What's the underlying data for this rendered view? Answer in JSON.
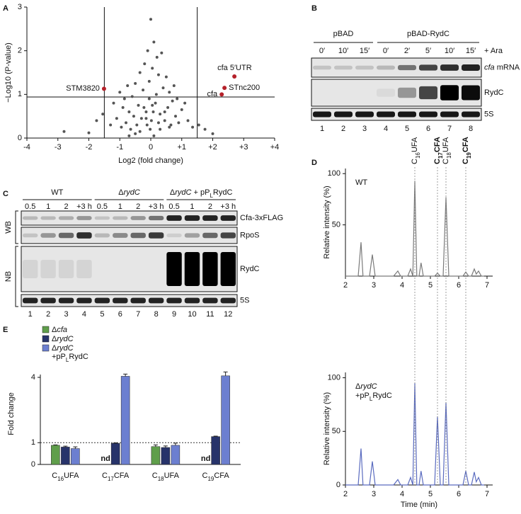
{
  "panel_labels": [
    "A",
    "B",
    "C",
    "D",
    "E"
  ],
  "chart_data": [
    {
      "type": "scatter",
      "x_label": "Log2 (fold change)",
      "y_label": "−Log10 (P-value)",
      "xlim": [
        -4,
        4
      ],
      "ylim": [
        0,
        3
      ],
      "xticks": [
        -4,
        -3,
        -2,
        -1,
        0,
        {
          "value": 1,
          "label": "+1"
        },
        {
          "value": 2,
          "label": "+2"
        },
        {
          "value": 3,
          "label": "+3"
        },
        {
          "value": 4,
          "label": "+4"
        }
      ],
      "yticks": [
        0,
        1,
        2,
        3
      ],
      "threshold_x": [
        -1.5,
        1.5
      ],
      "threshold_y": 0.94,
      "color": "#555555",
      "highlight_color": "#b5212a",
      "x": [
        -2.8,
        -2.0,
        -1.75,
        -1.55,
        -1.3,
        -1.2,
        -1.1,
        -1.0,
        -0.95,
        -0.9,
        -0.85,
        -0.8,
        -0.75,
        -0.7,
        -0.65,
        -0.6,
        -0.55,
        -0.5,
        -0.45,
        -0.4,
        -0.35,
        -0.3,
        -0.25,
        -0.2,
        -0.15,
        -0.1,
        -0.05,
        0,
        0.05,
        0.1,
        0.15,
        0.2,
        0.25,
        0.3,
        0.35,
        0.4,
        0.45,
        0.5,
        0.55,
        0.6,
        0.65,
        0.7,
        0.75,
        0.8,
        0.85,
        0.9,
        1.0,
        1.1,
        1.2,
        1.35,
        1.55,
        1.75,
        2.0,
        -0.05,
        0.02,
        -0.12,
        0.08,
        0.3,
        -0.35,
        0.18,
        -0.22,
        0.45,
        -0.5,
        0.1,
        -0.02,
        0.25,
        -0.15,
        0.6,
        -0.7,
        0.05
      ],
      "values": [
        0.15,
        0.12,
        0.4,
        0.55,
        0.3,
        0.8,
        0.45,
        1.05,
        0.25,
        0.7,
        0.9,
        0.35,
        1.2,
        0.6,
        0.2,
        0.95,
        0.5,
        1.25,
        0.3,
        0.75,
        1.5,
        0.45,
        1.1,
        1.7,
        0.6,
        2.0,
        1.3,
        2.72,
        1.6,
        2.2,
        0.8,
        1.85,
        1.45,
        0.55,
        1.95,
        1.15,
        0.4,
        1.4,
        0.7,
        1.05,
        0.3,
        0.85,
        1.2,
        0.5,
        0.9,
        0.35,
        0.65,
        0.8,
        0.4,
        0.25,
        0.3,
        0.2,
        0.1,
        0.9,
        0.4,
        0.3,
        0.6,
        0.2,
        0.15,
        1.0,
        0.7,
        0.6,
        0.1,
        0.05,
        0.2,
        0.35,
        0.45,
        0.25,
        0.05,
        0.75
      ],
      "highlights": [
        {
          "label": "STM3820",
          "x": -1.51,
          "y": 1.13
        },
        {
          "label": "cfa 5′UTR",
          "x": 2.7,
          "y": 1.41
        },
        {
          "label": "STnc200",
          "x": 2.38,
          "y": 1.15
        },
        {
          "label": "cfa",
          "x": 2.29,
          "y": 1.0
        }
      ]
    },
    {
      "type": "line",
      "y_label": "Relative intensity (%)",
      "xlim": [
        2,
        7.2
      ],
      "ylim": [
        0,
        105
      ],
      "xticks": [
        2,
        3,
        4,
        5,
        6,
        7
      ],
      "yticks": [
        50,
        100
      ],
      "x": [
        2,
        2.45,
        2.55,
        2.62,
        2.85,
        2.95,
        3.05,
        3.7,
        3.85,
        3.95,
        4.2,
        4.3,
        4.38,
        4.45,
        4.52,
        4.6,
        4.67,
        4.75,
        5.15,
        5.25,
        5.35,
        5.45,
        5.55,
        5.65,
        6.15,
        6.25,
        6.35,
        6.45,
        6.55,
        6.62,
        6.7,
        6.8,
        6.9
      ],
      "series": [
        {
          "name": [
            [
              {
                "text": "WT"
              }
            ]
          ],
          "color": "#7a7a7a",
          "values": [
            0,
            0,
            33,
            0,
            0,
            21,
            0,
            0,
            5,
            0,
            0,
            7,
            0,
            93,
            0,
            0,
            13,
            0,
            0,
            3,
            0,
            0,
            77,
            0,
            0,
            4,
            0,
            0,
            7,
            2,
            5,
            0,
            0
          ]
        }
      ],
      "peak_labels": [
        {
          "x": 4.45,
          "bold": false,
          "text": [
            {
              "text": "C"
            },
            {
              "text": "16",
              "style": "sub"
            },
            {
              "text": "UFA"
            }
          ]
        },
        {
          "x": 5.25,
          "bold": true,
          "text": [
            {
              "text": "C"
            },
            {
              "text": "17",
              "style": "sub"
            },
            {
              "text": "CFA"
            }
          ]
        },
        {
          "x": 5.55,
          "bold": false,
          "text": [
            {
              "text": "C"
            },
            {
              "text": "18",
              "style": "sub"
            },
            {
              "text": "UFA"
            }
          ]
        },
        {
          "x": 6.25,
          "bold": true,
          "text": [
            {
              "text": "C"
            },
            {
              "text": "19",
              "style": "sub"
            },
            {
              "text": "CFA"
            }
          ]
        }
      ]
    },
    {
      "type": "line",
      "x_label": "Time (min)",
      "y_label": "Relative intensity (%)",
      "xlim": [
        2,
        7.2
      ],
      "ylim": [
        0,
        105
      ],
      "xticks": [
        2,
        3,
        4,
        5,
        6,
        7
      ],
      "yticks": [
        0,
        50,
        100
      ],
      "x": [
        2,
        2.45,
        2.55,
        2.62,
        2.85,
        2.95,
        3.05,
        3.7,
        3.85,
        3.95,
        4.2,
        4.3,
        4.38,
        4.45,
        4.52,
        4.6,
        4.67,
        4.75,
        5.15,
        5.25,
        5.35,
        5.45,
        5.55,
        5.65,
        6.15,
        6.25,
        6.35,
        6.45,
        6.55,
        6.62,
        6.7,
        6.8,
        6.9
      ],
      "series": [
        {
          "name": [
            [
              {
                "text": "Δ"
              },
              {
                "text": "rydC",
                "style": "italic"
              }
            ],
            [
              {
                "text": "+pP"
              },
              {
                "text": "L",
                "style": "sub"
              },
              {
                "text": "RydC"
              }
            ]
          ],
          "color": "#5a6bbf",
          "values": [
            0,
            0,
            34,
            0,
            0,
            22,
            0,
            0,
            5,
            0,
            0,
            7,
            0,
            95,
            0,
            0,
            13,
            0,
            0,
            64,
            0,
            0,
            77,
            0,
            0,
            13,
            0,
            0,
            12,
            3,
            7,
            0,
            0
          ]
        }
      ]
    },
    {
      "type": "bar",
      "y_label": "Fold change",
      "ylim": [
        0,
        4
      ],
      "yticks": [
        0,
        1,
        4
      ],
      "reference_line": 1,
      "nd_label": "nd",
      "categories": [
        [
          {
            "text": "C"
          },
          {
            "text": "16",
            "style": "sub"
          },
          {
            "text": "UFA"
          }
        ],
        [
          {
            "text": "C"
          },
          {
            "text": "17",
            "style": "sub"
          },
          {
            "text": "CFA"
          }
        ],
        [
          {
            "text": "C"
          },
          {
            "text": "18",
            "style": "sub"
          },
          {
            "text": "UFA"
          }
        ],
        [
          {
            "text": "C"
          },
          {
            "text": "19",
            "style": "sub"
          },
          {
            "text": "CFA"
          }
        ]
      ],
      "series": [
        {
          "name": [
            [
              {
                "text": "Δ"
              },
              {
                "text": "cfa",
                "style": "italic"
              }
            ]
          ],
          "color": "#5f9e4b",
          "values": [
            0.88,
            null,
            0.82,
            null
          ],
          "errors": [
            0.02,
            null,
            0.08,
            null
          ]
        },
        {
          "name": [
            [
              {
                "text": "Δ"
              },
              {
                "text": "rydC",
                "style": "italic"
              }
            ]
          ],
          "color": "#27336a",
          "values": [
            0.8,
            0.97,
            0.78,
            1.28
          ],
          "errors": [
            0.04,
            0.02,
            0.07,
            0.02
          ]
        },
        {
          "name": [
            [
              {
                "text": "Δ"
              },
              {
                "text": "rydC",
                "style": "italic"
              }
            ],
            [
              {
                "text": "+pP"
              },
              {
                "text": "L",
                "style": "sub"
              },
              {
                "text": "RydC"
              }
            ]
          ],
          "color": "#6c7fd0",
          "values": [
            0.73,
            4.05,
            0.88,
            4.07
          ],
          "errors": [
            0.08,
            0.1,
            0.1,
            0.18
          ]
        }
      ]
    }
  ],
  "blot_b": {
    "groups": [
      {
        "label": "pBAD",
        "times": [
          "0′",
          "10′",
          "15′"
        ]
      },
      {
        "label": "pBAD-RydC",
        "times": [
          "0′",
          "2′",
          "5′",
          "10′",
          "15′"
        ]
      }
    ],
    "treatment": "+ Ara",
    "rows": [
      [
        {
          "text": "cfa",
          "style": "italic"
        },
        {
          "text": " mRNA"
        }
      ],
      [
        {
          "text": "RydC"
        }
      ],
      [
        {
          "text": "5S"
        }
      ]
    ],
    "lanes": [
      1,
      2,
      3,
      4,
      5,
      6,
      7,
      8
    ]
  },
  "blot_c": {
    "groups": [
      {
        "label": [
          {
            "text": "WT"
          }
        ],
        "times": [
          "0.5",
          "1",
          "2",
          "+3 h"
        ]
      },
      {
        "label": [
          {
            "text": "Δ"
          },
          {
            "text": "rydC",
            "style": "italic"
          }
        ],
        "times": [
          "0.5",
          "1",
          "2",
          "+3 h"
        ]
      },
      {
        "label": [
          {
            "text": "Δ"
          },
          {
            "text": "rydC",
            "style": "italic"
          },
          {
            "text": " + pP"
          },
          {
            "text": "L",
            "style": "sub"
          },
          {
            "text": "RydC"
          }
        ],
        "times": [
          "0.5",
          "1",
          "2",
          "+3 h"
        ]
      }
    ],
    "sections": [
      {
        "label": "WB",
        "rows": [
          "Cfa-3xFLAG",
          "RpoS"
        ]
      },
      {
        "label": "NB",
        "rows": [
          "RydC",
          "5S"
        ]
      }
    ],
    "lanes": [
      1,
      2,
      3,
      4,
      5,
      6,
      7,
      8,
      9,
      10,
      11,
      12
    ]
  }
}
